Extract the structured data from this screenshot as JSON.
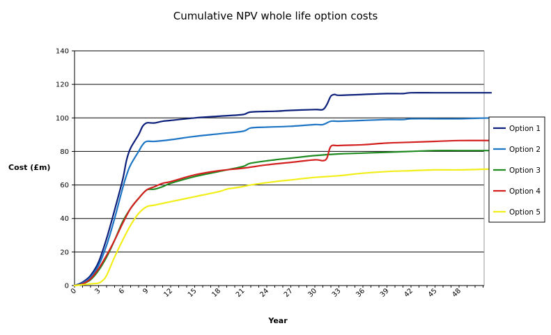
{
  "chart_data": {
    "type": "line",
    "title": "Cumulative NPV whole life option costs",
    "xlabel": "Year",
    "ylabel": "Cost (£m)",
    "xlim": [
      0,
      52
    ],
    "ylim": [
      0,
      140
    ],
    "yticks": [
      0,
      20,
      40,
      60,
      80,
      100,
      120,
      140
    ],
    "xticks": [
      0,
      3,
      6,
      9,
      12,
      15,
      18,
      21,
      24,
      27,
      30,
      33,
      36,
      39,
      42,
      45,
      48
    ],
    "grid": "horizontal",
    "legend_position": "right",
    "series": [
      {
        "name": "Option  1",
        "color": "#0b1f7a",
        "points": [
          [
            0,
            0
          ],
          [
            1,
            2
          ],
          [
            2,
            6
          ],
          [
            3,
            14
          ],
          [
            4,
            28
          ],
          [
            5,
            45
          ],
          [
            6,
            63
          ],
          [
            6.5,
            75
          ],
          [
            7,
            82
          ],
          [
            8,
            90
          ],
          [
            8.5,
            95
          ],
          [
            9,
            97
          ],
          [
            9.5,
            97
          ],
          [
            10,
            97
          ],
          [
            11,
            98
          ],
          [
            12,
            98.5
          ],
          [
            15,
            100
          ],
          [
            18,
            101
          ],
          [
            21,
            102
          ],
          [
            22,
            103.5
          ],
          [
            25,
            104
          ],
          [
            27,
            104.5
          ],
          [
            30,
            105
          ],
          [
            31,
            105
          ],
          [
            31.5,
            108
          ],
          [
            32,
            113
          ],
          [
            32.5,
            114
          ],
          [
            33,
            113.5
          ],
          [
            36,
            114
          ],
          [
            39,
            114.5
          ],
          [
            41,
            114.5
          ],
          [
            42,
            115
          ],
          [
            45,
            115
          ],
          [
            48,
            115
          ],
          [
            52,
            115
          ]
        ]
      },
      {
        "name": "Option  2",
        "color": "#1c74c4",
        "points": [
          [
            0,
            0
          ],
          [
            1,
            1.5
          ],
          [
            2,
            5
          ],
          [
            3,
            12
          ],
          [
            4,
            24
          ],
          [
            5,
            40
          ],
          [
            6,
            58
          ],
          [
            6.5,
            66
          ],
          [
            7,
            72
          ],
          [
            8,
            80
          ],
          [
            8.5,
            84
          ],
          [
            9,
            86
          ],
          [
            10,
            86
          ],
          [
            12,
            87
          ],
          [
            15,
            89
          ],
          [
            18,
            90.5
          ],
          [
            21,
            92
          ],
          [
            22,
            94
          ],
          [
            24,
            94.5
          ],
          [
            27,
            95
          ],
          [
            30,
            96
          ],
          [
            31,
            96
          ],
          [
            32,
            98
          ],
          [
            33,
            98
          ],
          [
            36,
            98.5
          ],
          [
            39,
            99
          ],
          [
            41,
            99
          ],
          [
            42,
            99.5
          ],
          [
            45,
            99.5
          ],
          [
            48,
            99.5
          ],
          [
            52,
            100
          ]
        ]
      },
      {
        "name": "Option  3",
        "color": "#1f8a1f",
        "points": [
          [
            0,
            0
          ],
          [
            1,
            1
          ],
          [
            2,
            3.5
          ],
          [
            3,
            9
          ],
          [
            4,
            17
          ],
          [
            5,
            27
          ],
          [
            6,
            38
          ],
          [
            7,
            46
          ],
          [
            8,
            52
          ],
          [
            9,
            57
          ],
          [
            10,
            57.5
          ],
          [
            11,
            59
          ],
          [
            12,
            61
          ],
          [
            15,
            65
          ],
          [
            18,
            68
          ],
          [
            21,
            71
          ],
          [
            22,
            73
          ],
          [
            25,
            75
          ],
          [
            27,
            76
          ],
          [
            30,
            77.5
          ],
          [
            33,
            78.5
          ],
          [
            36,
            79
          ],
          [
            39,
            79.5
          ],
          [
            42,
            80
          ],
          [
            45,
            80.5
          ],
          [
            48,
            80.5
          ],
          [
            52,
            80.5
          ]
        ]
      },
      {
        "name": "Option  4",
        "color": "#d41f1f",
        "points": [
          [
            0,
            0
          ],
          [
            1,
            1
          ],
          [
            2,
            4
          ],
          [
            3,
            10
          ],
          [
            4,
            18
          ],
          [
            5,
            27
          ],
          [
            6,
            37
          ],
          [
            7,
            46
          ],
          [
            8,
            52
          ],
          [
            9,
            57
          ],
          [
            10,
            59
          ],
          [
            11,
            61
          ],
          [
            12,
            62
          ],
          [
            15,
            66
          ],
          [
            18,
            68.5
          ],
          [
            21,
            70
          ],
          [
            24,
            72
          ],
          [
            27,
            73.5
          ],
          [
            30,
            75
          ],
          [
            31,
            74.5
          ],
          [
            31.5,
            76
          ],
          [
            32,
            83
          ],
          [
            33,
            83.5
          ],
          [
            36,
            84
          ],
          [
            39,
            85
          ],
          [
            42,
            85.5
          ],
          [
            45,
            86
          ],
          [
            48,
            86.5
          ],
          [
            52,
            86.5
          ]
        ]
      },
      {
        "name": "Option  5",
        "color": "#f2ee1a",
        "points": [
          [
            0,
            0
          ],
          [
            1,
            0.5
          ],
          [
            2,
            1
          ],
          [
            3,
            1.5
          ],
          [
            3.5,
            3
          ],
          [
            4,
            6
          ],
          [
            5,
            17
          ],
          [
            6,
            27
          ],
          [
            7,
            36
          ],
          [
            8,
            43
          ],
          [
            9,
            47
          ],
          [
            10,
            48
          ],
          [
            12,
            50
          ],
          [
            15,
            53
          ],
          [
            18,
            56
          ],
          [
            19,
            57.5
          ],
          [
            21,
            59
          ],
          [
            22,
            60
          ],
          [
            25,
            62
          ],
          [
            27,
            63
          ],
          [
            30,
            64.5
          ],
          [
            33,
            65.5
          ],
          [
            36,
            67
          ],
          [
            39,
            68
          ],
          [
            42,
            68.5
          ],
          [
            45,
            69
          ],
          [
            48,
            69
          ],
          [
            52,
            69.5
          ]
        ]
      }
    ]
  }
}
